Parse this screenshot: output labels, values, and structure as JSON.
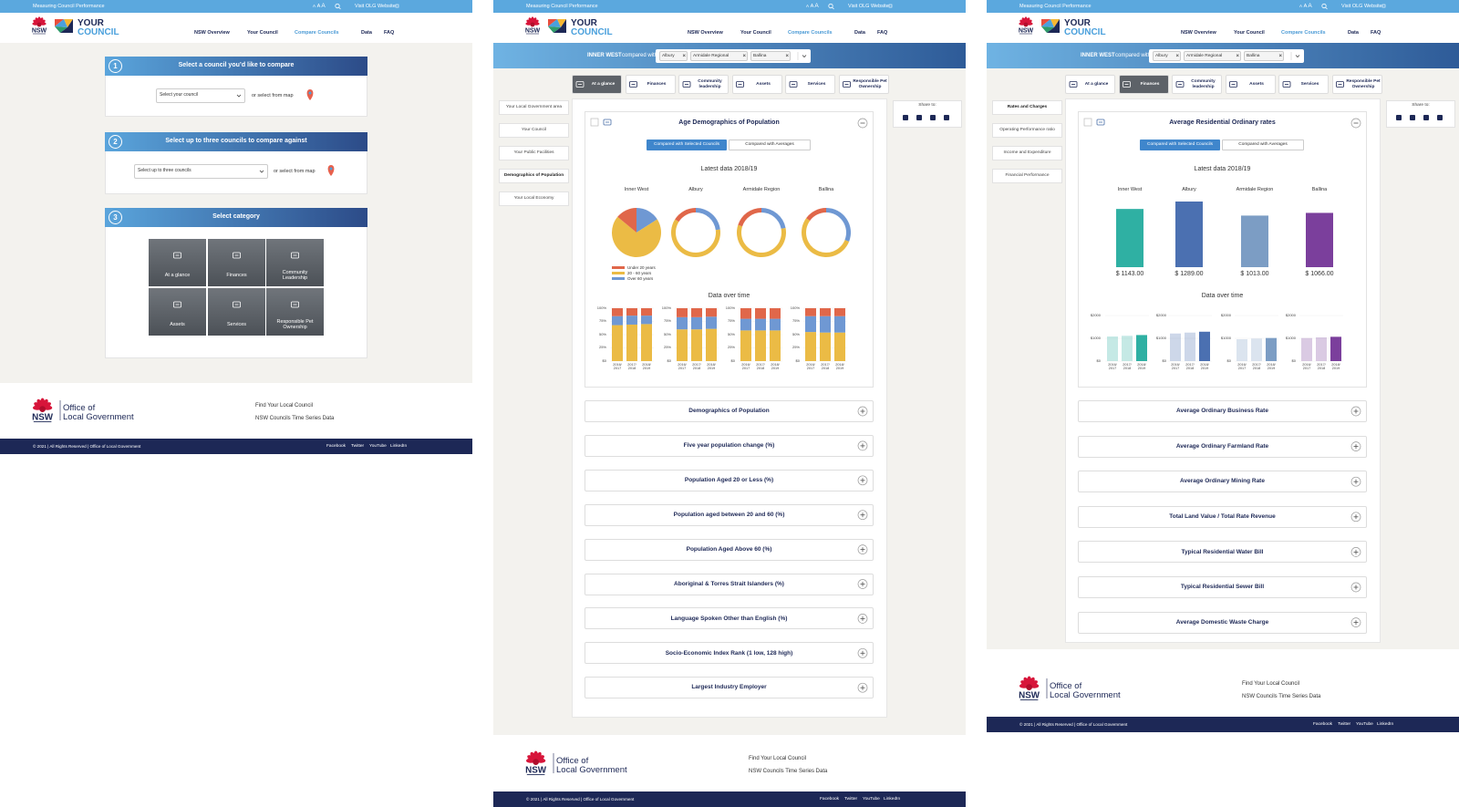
{
  "common": {
    "topbar": {
      "site": "Measuring Council Performance",
      "text_size": [
        "A",
        "A",
        "A"
      ],
      "link": "Visit OLG Website"
    },
    "logo": {
      "nsw": "NSW",
      "your": "YOUR",
      "council": "COUNCIL"
    },
    "nav": [
      "NSW Overview",
      "Your Council",
      "Compare Councils",
      "Data",
      "FAQ"
    ],
    "active_nav": 2,
    "footer": {
      "org": [
        "Office of",
        "Local Government"
      ],
      "links": [
        "Find Your Local Council",
        "NSW Councils Time Series Data"
      ],
      "copyright": "© 2021 | All Rights Reserved | Office of Local Government",
      "social": [
        "Facebook",
        "Twitter",
        "YouTube",
        "LinkedIn"
      ]
    }
  },
  "select_screen": {
    "steps": [
      {
        "number": "1",
        "title": "Select a council you’d like to compare",
        "placeholder": "Select your council",
        "map": "or select from map"
      },
      {
        "number": "2",
        "title": "Select up to three councils to compare against",
        "placeholder": "Select up to three councils",
        "map": "or select from map"
      },
      {
        "number": "3",
        "title": "Select category"
      }
    ],
    "categories": [
      "At a glance",
      "Finances",
      "Community Leadership",
      "Assets",
      "Services",
      "Responsible Pet Ownership"
    ]
  },
  "compare": {
    "focus": "INNER WEST",
    "compared_with": "compared with",
    "councils": [
      "Albury",
      "Armidale Regional",
      "Ballina"
    ],
    "tabs": [
      "At a glance",
      "Finances",
      "Community leadership",
      "Assets",
      "Services",
      "Responsible Pet Ownership"
    ],
    "share": "Share to:",
    "toggle": [
      "Compared with Selected Councils",
      "Compared with Averages"
    ],
    "active_toggle": 0,
    "latest": "Latest data 2018/19",
    "council_names": [
      "Inner West",
      "Albury",
      "Armidale Region",
      "Ballina"
    ],
    "over_time_title": "Data over time",
    "periods": [
      "2016/ 2017",
      "2017/ 2018",
      "2018/ 2019"
    ]
  },
  "demographics_screen": {
    "active_tab": 0,
    "menu": [
      "Your Local Government area",
      "Your Council",
      "Your Public Facilities",
      "Demographics of Population",
      "Your Local Economy"
    ],
    "active_menu": 3,
    "card": {
      "title": "Age Demographics of Population",
      "groups": [
        {
          "name": "Under 20 years",
          "color": "#e0674a"
        },
        {
          "name": "20 - 60 years",
          "color": "#ebbb45"
        },
        {
          "name": "Over 60 years",
          "color": "#6f98d3"
        }
      ],
      "ylim": [
        0,
        100
      ],
      "yticks": [
        {
          "value": 0,
          "label": "$0"
        },
        {
          "value": 25,
          "label": "25%"
        },
        {
          "value": 50,
          "label": "50%"
        },
        {
          "value": 75,
          "label": "75%"
        },
        {
          "value": 100,
          "label": "100%"
        }
      ],
      "values": [
        [
          [
            15,
            14,
            14
          ],
          [
            68,
            69,
            70
          ],
          [
            17,
            17,
            16
          ]
        ],
        [
          [
            17,
            17,
            16
          ],
          [
            60,
            60,
            61
          ],
          [
            23,
            23,
            23
          ]
        ],
        [
          [
            20,
            20,
            20
          ],
          [
            58,
            58,
            58
          ],
          [
            22,
            22,
            22
          ]
        ],
        [
          [
            15,
            15,
            15
          ],
          [
            55,
            54,
            54
          ],
          [
            30,
            31,
            31
          ]
        ]
      ]
    },
    "accordion": [
      "Demographics of Population",
      "Five year population change (%)",
      "Population Aged 20 or Less (%)",
      "Population aged between 20 and 60 (%)",
      "Population Aged Above 60 (%)",
      "Aboriginal & Torres Strait Islanders (%)",
      "Language Spoken Other than English (%)",
      "Socio-Economic Index Rank (1 low, 128 high)",
      "Largest Industry Employer"
    ]
  },
  "finances_screen": {
    "active_tab": 1,
    "menu": [
      "Rates and Charges",
      "Operating Performance ratio",
      "Income and Expenditure",
      "Financial Performance"
    ],
    "active_menu": 0,
    "card": {
      "title": "Average Residential Ordinary rates",
      "colors": [
        "#2fb0a3",
        "#4b70b1",
        "#7c9dc4",
        "#7b3f9c"
      ],
      "values": [
        1143,
        1289,
        1013,
        1066
      ],
      "value_labels": [
        "$ 1143.00",
        "$ 1289.00",
        "$ 1013.00",
        "$ 1066.00"
      ],
      "ylim": [
        0,
        2000
      ],
      "yticks": [
        {
          "value": 0,
          "label": "$0"
        },
        {
          "value": 1000,
          "label": "$1000"
        },
        {
          "value": 2000,
          "label": "$2000"
        }
      ],
      "history": [
        [
          1080,
          1110,
          1143
        ],
        [
          1210,
          1250,
          1289
        ],
        [
          960,
          990,
          1013
        ],
        [
          1010,
          1040,
          1066
        ]
      ]
    },
    "accordion": [
      "Average Ordinary Business Rate",
      "Average Ordinary Farmland Rate",
      "Average Ordinary Mining Rate",
      "Total Land Value / Total Rate Revenue",
      "Typical Residential Water Bill",
      "Typical Residential Sewer Bill",
      "Average Domestic Waste Charge"
    ]
  }
}
